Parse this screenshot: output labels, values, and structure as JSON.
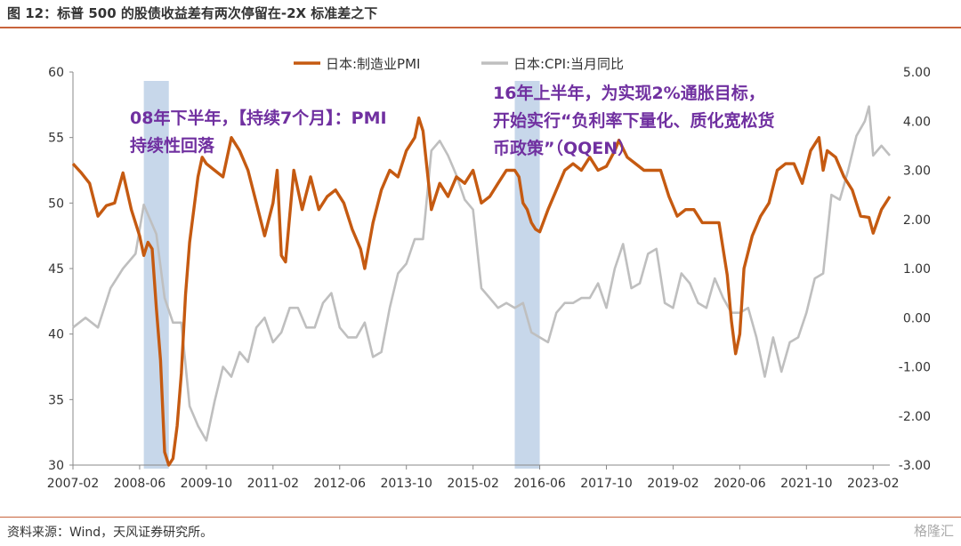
{
  "header": {
    "title": "图 12：标普 500 的股债收益差有两次停留在-2X 标准差之下"
  },
  "footer": {
    "source": "资料来源：Wind，天风证券研究所。",
    "watermark": "格隆汇"
  },
  "annotations": {
    "a1": "08年下半年，【持续7个月】：PMI持续性回落",
    "a2": "16年上半年，为实现2%通胀目标，开始实行“负利率下量化、质化宽松货币政策”（QQEN）"
  },
  "colors": {
    "pmi": "#c55a11",
    "cpi": "#bfbfbf",
    "shade": "#c7d7ea",
    "annotation": "#7030a0"
  },
  "chart_data": {
    "type": "line",
    "title": "",
    "x_tick_labels": [
      "2007-02",
      "2008-06",
      "2009-10",
      "2011-02",
      "2012-06",
      "2013-10",
      "2015-02",
      "2016-06",
      "2017-10",
      "2019-02",
      "2020-06",
      "2021-10",
      "2023-02"
    ],
    "x_range": [
      "2007-02",
      "2023-06"
    ],
    "ylim_left": [
      30,
      60
    ],
    "yticks_left": [
      "30",
      "35",
      "40",
      "45",
      "50",
      "55",
      "60"
    ],
    "ylim_right": [
      -3,
      5
    ],
    "yticks_right": [
      "-3.00",
      "-2.00",
      "-1.00",
      "0.00",
      "1.00",
      "2.00",
      "3.00",
      "4.00",
      "5.00"
    ],
    "legend_position": "top-center",
    "shaded_periods": [
      [
        "2008-07",
        "2009-01"
      ],
      [
        "2015-12",
        "2016-06"
      ]
    ],
    "series": [
      {
        "name": "日本:制造业PMI",
        "axis": "left",
        "points": [
          [
            "2007-02",
            53.0
          ],
          [
            "2007-04",
            52.3
          ],
          [
            "2007-06",
            51.5
          ],
          [
            "2007-08",
            49.0
          ],
          [
            "2007-10",
            49.8
          ],
          [
            "2007-12",
            50.0
          ],
          [
            "2008-02",
            52.3
          ],
          [
            "2008-04",
            49.5
          ],
          [
            "2008-06",
            47.5
          ],
          [
            "2008-07",
            46.0
          ],
          [
            "2008-08",
            47.0
          ],
          [
            "2008-09",
            46.5
          ],
          [
            "2008-10",
            42.0
          ],
          [
            "2008-11",
            38.0
          ],
          [
            "2008-12",
            31.0
          ],
          [
            "2009-01",
            30.0
          ],
          [
            "2009-02",
            30.5
          ],
          [
            "2009-03",
            33.0
          ],
          [
            "2009-04",
            37.0
          ],
          [
            "2009-05",
            43.0
          ],
          [
            "2009-06",
            47.0
          ],
          [
            "2009-08",
            52.0
          ],
          [
            "2009-09",
            53.5
          ],
          [
            "2009-10",
            53.0
          ],
          [
            "2009-12",
            52.5
          ],
          [
            "2010-02",
            52.0
          ],
          [
            "2010-04",
            55.0
          ],
          [
            "2010-06",
            54.0
          ],
          [
            "2010-08",
            52.5
          ],
          [
            "2010-10",
            50.0
          ],
          [
            "2010-12",
            47.5
          ],
          [
            "2011-02",
            50.0
          ],
          [
            "2011-03",
            52.5
          ],
          [
            "2011-04",
            46.0
          ],
          [
            "2011-05",
            45.5
          ],
          [
            "2011-07",
            52.5
          ],
          [
            "2011-09",
            49.5
          ],
          [
            "2011-11",
            52.0
          ],
          [
            "2012-01",
            49.5
          ],
          [
            "2012-03",
            50.5
          ],
          [
            "2012-05",
            51.0
          ],
          [
            "2012-07",
            50.0
          ],
          [
            "2012-09",
            48.0
          ],
          [
            "2012-11",
            46.5
          ],
          [
            "2012-12",
            45.0
          ],
          [
            "2013-02",
            48.5
          ],
          [
            "2013-04",
            51.0
          ],
          [
            "2013-06",
            52.5
          ],
          [
            "2013-08",
            52.0
          ],
          [
            "2013-10",
            54.0
          ],
          [
            "2013-12",
            55.0
          ],
          [
            "2014-01",
            56.5
          ],
          [
            "2014-02",
            55.5
          ],
          [
            "2014-04",
            49.5
          ],
          [
            "2014-06",
            51.5
          ],
          [
            "2014-08",
            50.5
          ],
          [
            "2014-10",
            52.0
          ],
          [
            "2014-12",
            51.5
          ],
          [
            "2015-02",
            52.5
          ],
          [
            "2015-04",
            50.0
          ],
          [
            "2015-06",
            50.5
          ],
          [
            "2015-08",
            51.5
          ],
          [
            "2015-10",
            52.5
          ],
          [
            "2015-12",
            52.5
          ],
          [
            "2016-01",
            52.0
          ],
          [
            "2016-02",
            50.0
          ],
          [
            "2016-03",
            49.5
          ],
          [
            "2016-04",
            48.5
          ],
          [
            "2016-05",
            48.0
          ],
          [
            "2016-06",
            47.8
          ],
          [
            "2016-08",
            49.5
          ],
          [
            "2016-10",
            51.0
          ],
          [
            "2016-12",
            52.5
          ],
          [
            "2017-02",
            53.0
          ],
          [
            "2017-04",
            52.5
          ],
          [
            "2017-06",
            53.5
          ],
          [
            "2017-08",
            52.5
          ],
          [
            "2017-10",
            52.8
          ],
          [
            "2017-12",
            54.0
          ],
          [
            "2018-01",
            54.8
          ],
          [
            "2018-03",
            53.5
          ],
          [
            "2018-05",
            53.0
          ],
          [
            "2018-07",
            52.5
          ],
          [
            "2018-09",
            52.5
          ],
          [
            "2018-11",
            52.5
          ],
          [
            "2019-01",
            50.5
          ],
          [
            "2019-03",
            49.0
          ],
          [
            "2019-05",
            49.5
          ],
          [
            "2019-07",
            49.5
          ],
          [
            "2019-09",
            48.5
          ],
          [
            "2019-11",
            48.5
          ],
          [
            "2020-01",
            48.5
          ],
          [
            "2020-03",
            44.5
          ],
          [
            "2020-04",
            41.0
          ],
          [
            "2020-05",
            38.5
          ],
          [
            "2020-06",
            40.0
          ],
          [
            "2020-07",
            45.0
          ],
          [
            "2020-09",
            47.5
          ],
          [
            "2020-11",
            49.0
          ],
          [
            "2021-01",
            50.0
          ],
          [
            "2021-03",
            52.5
          ],
          [
            "2021-05",
            53.0
          ],
          [
            "2021-07",
            53.0
          ],
          [
            "2021-09",
            51.5
          ],
          [
            "2021-11",
            54.0
          ],
          [
            "2022-01",
            55.0
          ],
          [
            "2022-02",
            52.5
          ],
          [
            "2022-03",
            54.0
          ],
          [
            "2022-05",
            53.5
          ],
          [
            "2022-07",
            52.0
          ],
          [
            "2022-09",
            51.0
          ],
          [
            "2022-11",
            49.0
          ],
          [
            "2023-01",
            48.9
          ],
          [
            "2023-02",
            47.7
          ],
          [
            "2023-04",
            49.5
          ],
          [
            "2023-06",
            50.5
          ]
        ]
      },
      {
        "name": "日本:CPI:当月同比",
        "axis": "right",
        "points": [
          [
            "2007-02",
            -0.2
          ],
          [
            "2007-05",
            0.0
          ],
          [
            "2007-08",
            -0.2
          ],
          [
            "2007-11",
            0.6
          ],
          [
            "2008-02",
            1.0
          ],
          [
            "2008-05",
            1.3
          ],
          [
            "2008-07",
            2.3
          ],
          [
            "2008-08",
            2.1
          ],
          [
            "2008-10",
            1.7
          ],
          [
            "2008-12",
            0.4
          ],
          [
            "2009-02",
            -0.1
          ],
          [
            "2009-04",
            -0.1
          ],
          [
            "2009-06",
            -1.8
          ],
          [
            "2009-08",
            -2.2
          ],
          [
            "2009-10",
            -2.5
          ],
          [
            "2009-12",
            -1.7
          ],
          [
            "2010-02",
            -1.0
          ],
          [
            "2010-04",
            -1.2
          ],
          [
            "2010-06",
            -0.7
          ],
          [
            "2010-08",
            -0.9
          ],
          [
            "2010-10",
            -0.2
          ],
          [
            "2010-12",
            0.0
          ],
          [
            "2011-02",
            -0.5
          ],
          [
            "2011-04",
            -0.3
          ],
          [
            "2011-06",
            0.2
          ],
          [
            "2011-08",
            0.2
          ],
          [
            "2011-10",
            -0.2
          ],
          [
            "2011-12",
            -0.2
          ],
          [
            "2012-02",
            0.3
          ],
          [
            "2012-04",
            0.5
          ],
          [
            "2012-06",
            -0.2
          ],
          [
            "2012-08",
            -0.4
          ],
          [
            "2012-10",
            -0.4
          ],
          [
            "2012-12",
            -0.1
          ],
          [
            "2013-02",
            -0.8
          ],
          [
            "2013-04",
            -0.7
          ],
          [
            "2013-06",
            0.2
          ],
          [
            "2013-08",
            0.9
          ],
          [
            "2013-10",
            1.1
          ],
          [
            "2013-12",
            1.6
          ],
          [
            "2014-02",
            1.6
          ],
          [
            "2014-04",
            3.4
          ],
          [
            "2014-06",
            3.6
          ],
          [
            "2014-08",
            3.3
          ],
          [
            "2014-10",
            2.9
          ],
          [
            "2014-12",
            2.4
          ],
          [
            "2015-02",
            2.2
          ],
          [
            "2015-04",
            0.6
          ],
          [
            "2015-06",
            0.4
          ],
          [
            "2015-08",
            0.2
          ],
          [
            "2015-10",
            0.3
          ],
          [
            "2015-12",
            0.2
          ],
          [
            "2016-02",
            0.3
          ],
          [
            "2016-04",
            -0.3
          ],
          [
            "2016-06",
            -0.4
          ],
          [
            "2016-08",
            -0.5
          ],
          [
            "2016-10",
            0.1
          ],
          [
            "2016-12",
            0.3
          ],
          [
            "2017-02",
            0.3
          ],
          [
            "2017-04",
            0.4
          ],
          [
            "2017-06",
            0.4
          ],
          [
            "2017-08",
            0.7
          ],
          [
            "2017-10",
            0.2
          ],
          [
            "2017-12",
            1.0
          ],
          [
            "2018-02",
            1.5
          ],
          [
            "2018-04",
            0.6
          ],
          [
            "2018-06",
            0.7
          ],
          [
            "2018-08",
            1.3
          ],
          [
            "2018-10",
            1.4
          ],
          [
            "2018-12",
            0.3
          ],
          [
            "2019-02",
            0.2
          ],
          [
            "2019-04",
            0.9
          ],
          [
            "2019-06",
            0.7
          ],
          [
            "2019-08",
            0.3
          ],
          [
            "2019-10",
            0.2
          ],
          [
            "2019-12",
            0.8
          ],
          [
            "2020-02",
            0.4
          ],
          [
            "2020-04",
            0.1
          ],
          [
            "2020-06",
            0.1
          ],
          [
            "2020-08",
            0.2
          ],
          [
            "2020-10",
            -0.4
          ],
          [
            "2020-12",
            -1.2
          ],
          [
            "2021-02",
            -0.4
          ],
          [
            "2021-04",
            -1.1
          ],
          [
            "2021-06",
            -0.5
          ],
          [
            "2021-08",
            -0.4
          ],
          [
            "2021-10",
            0.1
          ],
          [
            "2021-12",
            0.8
          ],
          [
            "2022-02",
            0.9
          ],
          [
            "2022-04",
            2.5
          ],
          [
            "2022-06",
            2.4
          ],
          [
            "2022-08",
            3.0
          ],
          [
            "2022-10",
            3.7
          ],
          [
            "2022-12",
            4.0
          ],
          [
            "2023-01",
            4.3
          ],
          [
            "2023-02",
            3.3
          ],
          [
            "2023-04",
            3.5
          ],
          [
            "2023-06",
            3.3
          ]
        ]
      }
    ]
  }
}
